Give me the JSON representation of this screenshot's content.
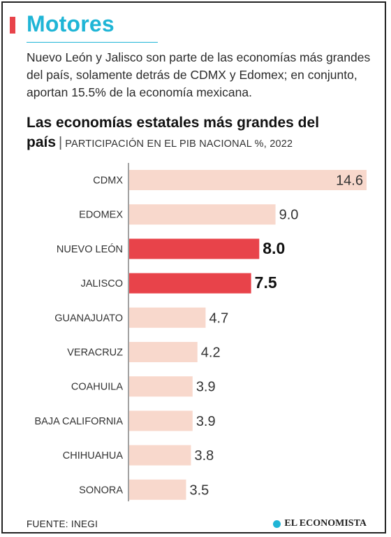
{
  "header": {
    "title": "Motores",
    "lede": "Nuevo León y Jalisco son parte de las economías más grandes del país, solamente detrás de CDMX y Edomex; en conjunto, aportan 15.5% de la economía mexicana."
  },
  "chart_title": {
    "main": "Las economías estatales más grandes del país",
    "separator": "|",
    "subtitle": "PARTICIPACIÓN EN EL PIB NACIONAL %, 2022"
  },
  "chart_data": {
    "type": "bar",
    "orientation": "horizontal",
    "title": "Las economías estatales más grandes del país",
    "subtitle": "PARTICIPACIÓN EN EL PIB NACIONAL %, 2022",
    "categories": [
      "CDMX",
      "EDOMEX",
      "NUEVO LEÓN",
      "JALISCO",
      "GUANAJUATO",
      "VERACRUZ",
      "COAHUILA",
      "BAJA CALIFORNIA",
      "CHIHUAHUA",
      "SONORA"
    ],
    "values": [
      14.6,
      9.0,
      8.0,
      7.5,
      4.7,
      4.2,
      3.9,
      3.9,
      3.8,
      3.5
    ],
    "value_labels": [
      "14.6",
      "9.0",
      "8.0",
      "7.5",
      "4.7",
      "4.2",
      "3.9",
      "3.9",
      "3.8",
      "3.5"
    ],
    "highlighted": [
      "NUEVO LEÓN",
      "JALISCO"
    ],
    "xlim": [
      0,
      14.6
    ],
    "grid": false,
    "colors": {
      "default_bar": "#f8d8cc",
      "highlight_bar": "#e8434a",
      "axis": "#444444"
    }
  },
  "footer": {
    "source": "FUENTE: INEGI",
    "brand": "EL ECONOMISTA",
    "brand_icon": "el-economista-logo-icon"
  }
}
